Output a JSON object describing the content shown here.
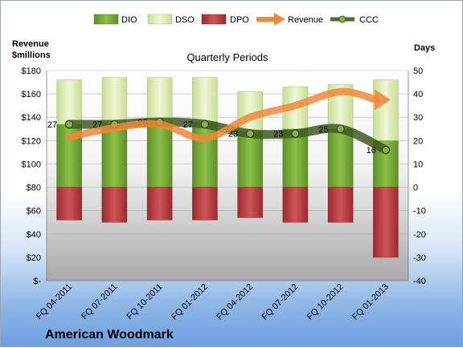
{
  "chart_data": {
    "type": "bar",
    "title": "Quarterly Periods",
    "company": "American Woodmark",
    "y_left_label_line1": "Revenue",
    "y_left_label_line2": "$millions",
    "y_right_label": "Days",
    "y_left_ticks": [
      "$-",
      "$20",
      "$40",
      "$60",
      "$80",
      "$100",
      "$120",
      "$140",
      "$160",
      "$180"
    ],
    "y_right_ticks": [
      "-40",
      "-30",
      "-20",
      "-10",
      "0",
      "10",
      "20",
      "30",
      "40",
      "50"
    ],
    "ylim_left": [
      0,
      180
    ],
    "ylim_right": [
      -40,
      50
    ],
    "categories": [
      "FQ 04-2011",
      "FQ 07-2011",
      "FQ 10-2011",
      "FQ 01-2012",
      "FQ 04-2012",
      "FQ 07-2012",
      "FQ 10-2012",
      "FQ 01-2013"
    ],
    "series": [
      {
        "name": "DIO",
        "axis": "right",
        "values": [
          27,
          27,
          28,
          28,
          24,
          25,
          25,
          20
        ]
      },
      {
        "name": "DSO",
        "axis": "right",
        "values": [
          19,
          20,
          19,
          19,
          17,
          18,
          19,
          26
        ]
      },
      {
        "name": "DPO",
        "axis": "right",
        "values": [
          -14,
          -15,
          -14,
          -14,
          -13,
          -15,
          -15,
          -30
        ]
      },
      {
        "name": "Revenue",
        "axis": "left",
        "values": [
          123,
          131,
          134,
          122,
          140,
          150,
          162,
          155
        ]
      },
      {
        "name": "CCC",
        "axis": "right",
        "values": [
          27,
          27,
          28,
          27,
          23,
          23,
          25,
          16
        ]
      }
    ],
    "legend_position": "top",
    "colors": {
      "DIO": "#7aa83a",
      "DSO": "#dcebb4",
      "DPO": "#b8383d",
      "Revenue": "#f0883a",
      "CCC": "#4f6b2d"
    }
  }
}
